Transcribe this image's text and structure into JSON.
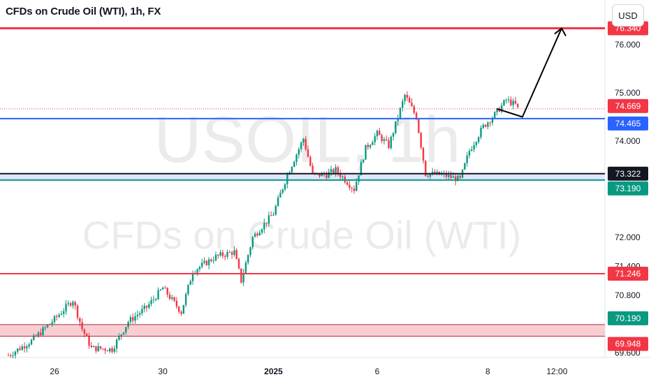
{
  "header": {
    "title": "CFDs on Crude Oil (WTI), 1h, FX",
    "currency_button": "USD"
  },
  "watermark": {
    "symbol": "USOIL, 1h",
    "description": "CFDs on Crude Oil (WTI)"
  },
  "colors": {
    "up": "#089981",
    "down": "#f23645",
    "support_blue": "#2962ff",
    "resistance_red": "#f23645",
    "zone_fill": "#f7c6cb",
    "black": "#131722"
  },
  "chart_data": {
    "type": "candlestick",
    "ylim": [
      69.6,
      76.34
    ],
    "y_ticks": [
      "76.000",
      "75.000",
      "74.000",
      "72.000",
      "71.400",
      "70.800",
      "69.600"
    ],
    "x_ticks": [
      {
        "label": "26",
        "bar": 20
      },
      {
        "label": "30",
        "bar": 67
      },
      {
        "label": "2025",
        "bar": 115,
        "bold": true
      },
      {
        "label": "6",
        "bar": 160
      },
      {
        "label": "8",
        "bar": 208
      },
      {
        "label": "12:00",
        "bar": 238
      }
    ],
    "bars_total": 270,
    "price_path": [
      [
        0,
        69.55
      ],
      [
        10,
        69.85
      ],
      [
        20,
        70.3
      ],
      [
        28,
        70.7
      ],
      [
        32,
        70.1
      ],
      [
        36,
        69.7
      ],
      [
        45,
        69.68
      ],
      [
        52,
        70.25
      ],
      [
        60,
        70.55
      ],
      [
        67,
        70.95
      ],
      [
        75,
        70.45
      ],
      [
        80,
        71.3
      ],
      [
        90,
        71.6
      ],
      [
        98,
        71.7
      ],
      [
        101,
        71.1
      ],
      [
        106,
        72.0
      ],
      [
        115,
        72.5
      ],
      [
        121,
        73.3
      ],
      [
        128,
        74.05
      ],
      [
        132,
        73.3
      ],
      [
        138,
        73.3
      ],
      [
        142,
        73.4
      ],
      [
        150,
        73.0
      ],
      [
        155,
        73.85
      ],
      [
        160,
        74.15
      ],
      [
        165,
        73.9
      ],
      [
        172,
        74.95
      ],
      [
        177,
        74.5
      ],
      [
        181,
        73.32
      ],
      [
        188,
        73.3
      ],
      [
        196,
        73.2
      ],
      [
        200,
        73.8
      ],
      [
        206,
        74.3
      ],
      [
        211,
        74.55
      ],
      [
        216,
        74.85
      ],
      [
        220,
        74.75
      ],
      [
        221,
        74.67
      ]
    ],
    "levels": [
      {
        "name": "resistance-top",
        "value": 76.34,
        "color": "red",
        "label": "76.340"
      },
      {
        "name": "current-price",
        "value": 74.669,
        "color": "red",
        "label": "74.669",
        "dotted": true
      },
      {
        "name": "support-blue",
        "value": 74.465,
        "color": "blue",
        "label": "74.465"
      },
      {
        "name": "level-black",
        "value": 73.322,
        "color": "black",
        "label": "73.322"
      },
      {
        "name": "support-green",
        "value": 73.19,
        "color": "green",
        "label": "73.190"
      },
      {
        "name": "level-red-mid",
        "value": 71.246,
        "color": "red",
        "label": "71.246"
      },
      {
        "name": "zone-top",
        "value": 70.19,
        "color": "green",
        "label": "70.190"
      },
      {
        "name": "zone-bottom",
        "value": 69.948,
        "color": "red",
        "label": "69.948"
      }
    ],
    "projection": {
      "points": [
        [
          212,
          74.67
        ],
        [
          223,
          74.5
        ],
        [
          240,
          76.34
        ]
      ]
    }
  }
}
